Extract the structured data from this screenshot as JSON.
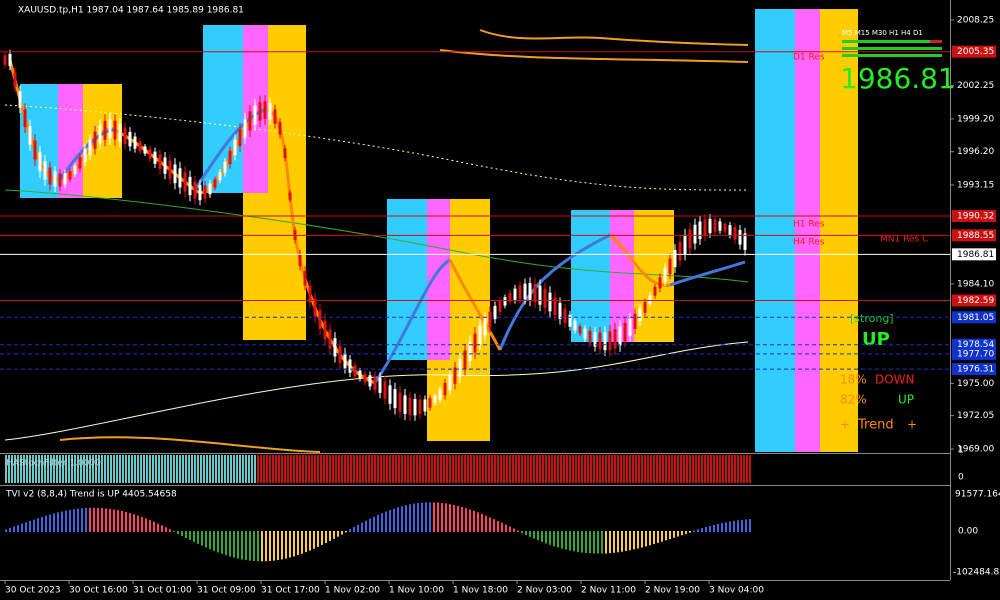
{
  "header": {
    "symbol_info": "XAUUSD.tp,H1  1987.04 1987.64 1985.89 1986.81"
  },
  "price_axis": [
    {
      "value": 2008.25,
      "label": "2008.25"
    },
    {
      "value": 2005.35,
      "label": "2005.35",
      "box": "#cc1111"
    },
    {
      "value": 2002.25,
      "label": "2002.25"
    },
    {
      "value": 1999.2,
      "label": "1999.20"
    },
    {
      "value": 1996.2,
      "label": "1996.20"
    },
    {
      "value": 1993.15,
      "label": "1993.15"
    },
    {
      "value": 1990.32,
      "label": "1990.32",
      "box": "#cc1111"
    },
    {
      "value": 1988.55,
      "label": "1988.55",
      "box": "#cc1111"
    },
    {
      "value": 1986.81,
      "label": "1986.81",
      "box": "#ffffff"
    },
    {
      "value": 1984.1,
      "label": "1984.10"
    },
    {
      "value": 1982.59,
      "label": "1982.59",
      "box": "#cc1111"
    },
    {
      "value": 1981.05,
      "label": "1981.05",
      "box": "#1133cc"
    },
    {
      "value": 1978.54,
      "label": "1978.54",
      "box": "#1133cc"
    },
    {
      "value": 1977.7,
      "label": "1977.70",
      "box": "#1133cc"
    },
    {
      "value": 1976.31,
      "label": "1976.31",
      "box": "#1133cc"
    },
    {
      "value": 1975,
      "label": "1975.00"
    },
    {
      "value": 1972.05,
      "label": "1972.05"
    },
    {
      "value": 1969,
      "label": "1969.00"
    }
  ],
  "time_axis": [
    "30 Oct 2023",
    "30 Oct 16:00",
    "31 Oct 01:00",
    "31 Oct 09:00",
    "31 Oct 17:00",
    "1 Nov 02:00",
    "1 Nov 10:00",
    "1 Nov 18:00",
    "2 Nov 03:00",
    "2 Nov 11:00",
    "2 Nov 19:00",
    "3 Nov 04:00"
  ],
  "levels": {
    "d1": "D1 Res",
    "h1": "H1 Res",
    "h4": "H4 Res",
    "mn1": "MN1 Res C"
  },
  "dashboard": {
    "timeframes": "M5 M15 M30 H1 H4 D1",
    "price": "1986.81",
    "strength": "[strong]",
    "signal": "UP",
    "down_pct": "18%",
    "down_label": "DOWN",
    "up_pct": "82%",
    "up_label": "UP",
    "trend_left": "+",
    "trend_label": "Trend",
    "trend_right": "+"
  },
  "stoch_panel": {
    "title": "HAStochFilter 1.0000",
    "axis_top": "1",
    "axis_bottom": "0"
  },
  "tvi_panel": {
    "title": "TVI v2 (8,8,4) Trend is UP 4405.54658",
    "axis_top": "91577.164",
    "axis_mid": "0.00",
    "axis_bottom": "-102484.8"
  }
}
